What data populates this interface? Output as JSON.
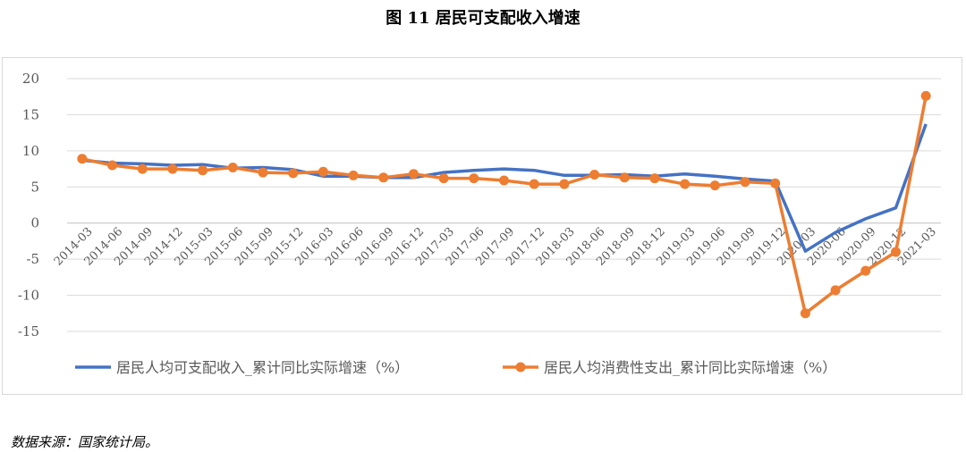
{
  "title": "图 11  居民可支配收入增速",
  "source": "数据来源：国家统计局。",
  "colors": {
    "income": "#4472c4",
    "consumption": "#ed7d31",
    "grid": "#d9d9d9",
    "axis": "#bfbfbf"
  },
  "chart_data": {
    "type": "line",
    "categories": [
      "2014-03",
      "2014-06",
      "2014-09",
      "2014-12",
      "2015-03",
      "2015-06",
      "2015-09",
      "2015-12",
      "2016-03",
      "2016-06",
      "2016-09",
      "2016-12",
      "2017-03",
      "2017-06",
      "2017-09",
      "2017-12",
      "2018-03",
      "2018-06",
      "2018-09",
      "2018-12",
      "2019-03",
      "2019-06",
      "2019-09",
      "2019-12",
      "2020-03",
      "2020-06",
      "2020-09",
      "2020-12",
      "2021-03"
    ],
    "series": [
      {
        "name": "居民人均可支配收入_累计同比实际增速（%）",
        "values": [
          8.7,
          8.3,
          8.2,
          8.0,
          8.1,
          7.6,
          7.7,
          7.4,
          6.5,
          6.5,
          6.3,
          6.3,
          7.0,
          7.3,
          7.5,
          7.3,
          6.6,
          6.6,
          6.7,
          6.5,
          6.8,
          6.5,
          6.1,
          5.8,
          -3.9,
          -1.3,
          0.6,
          2.1,
          13.7
        ]
      },
      {
        "name": "居民人均消费性支出_累计同比实际增速（%）",
        "values": [
          8.9,
          8.0,
          7.5,
          7.5,
          7.3,
          7.7,
          7.0,
          6.9,
          7.1,
          6.6,
          6.3,
          6.8,
          6.2,
          6.2,
          5.9,
          5.4,
          5.4,
          6.7,
          6.3,
          6.2,
          5.4,
          5.2,
          5.7,
          5.5,
          -12.5,
          -9.3,
          -6.6,
          -4.0,
          17.6
        ]
      }
    ],
    "yticks": [
      20,
      15,
      10,
      5,
      0,
      -5,
      -10,
      -15
    ],
    "ylim": [
      -15,
      20
    ],
    "grid": true,
    "legend": "bottom"
  }
}
